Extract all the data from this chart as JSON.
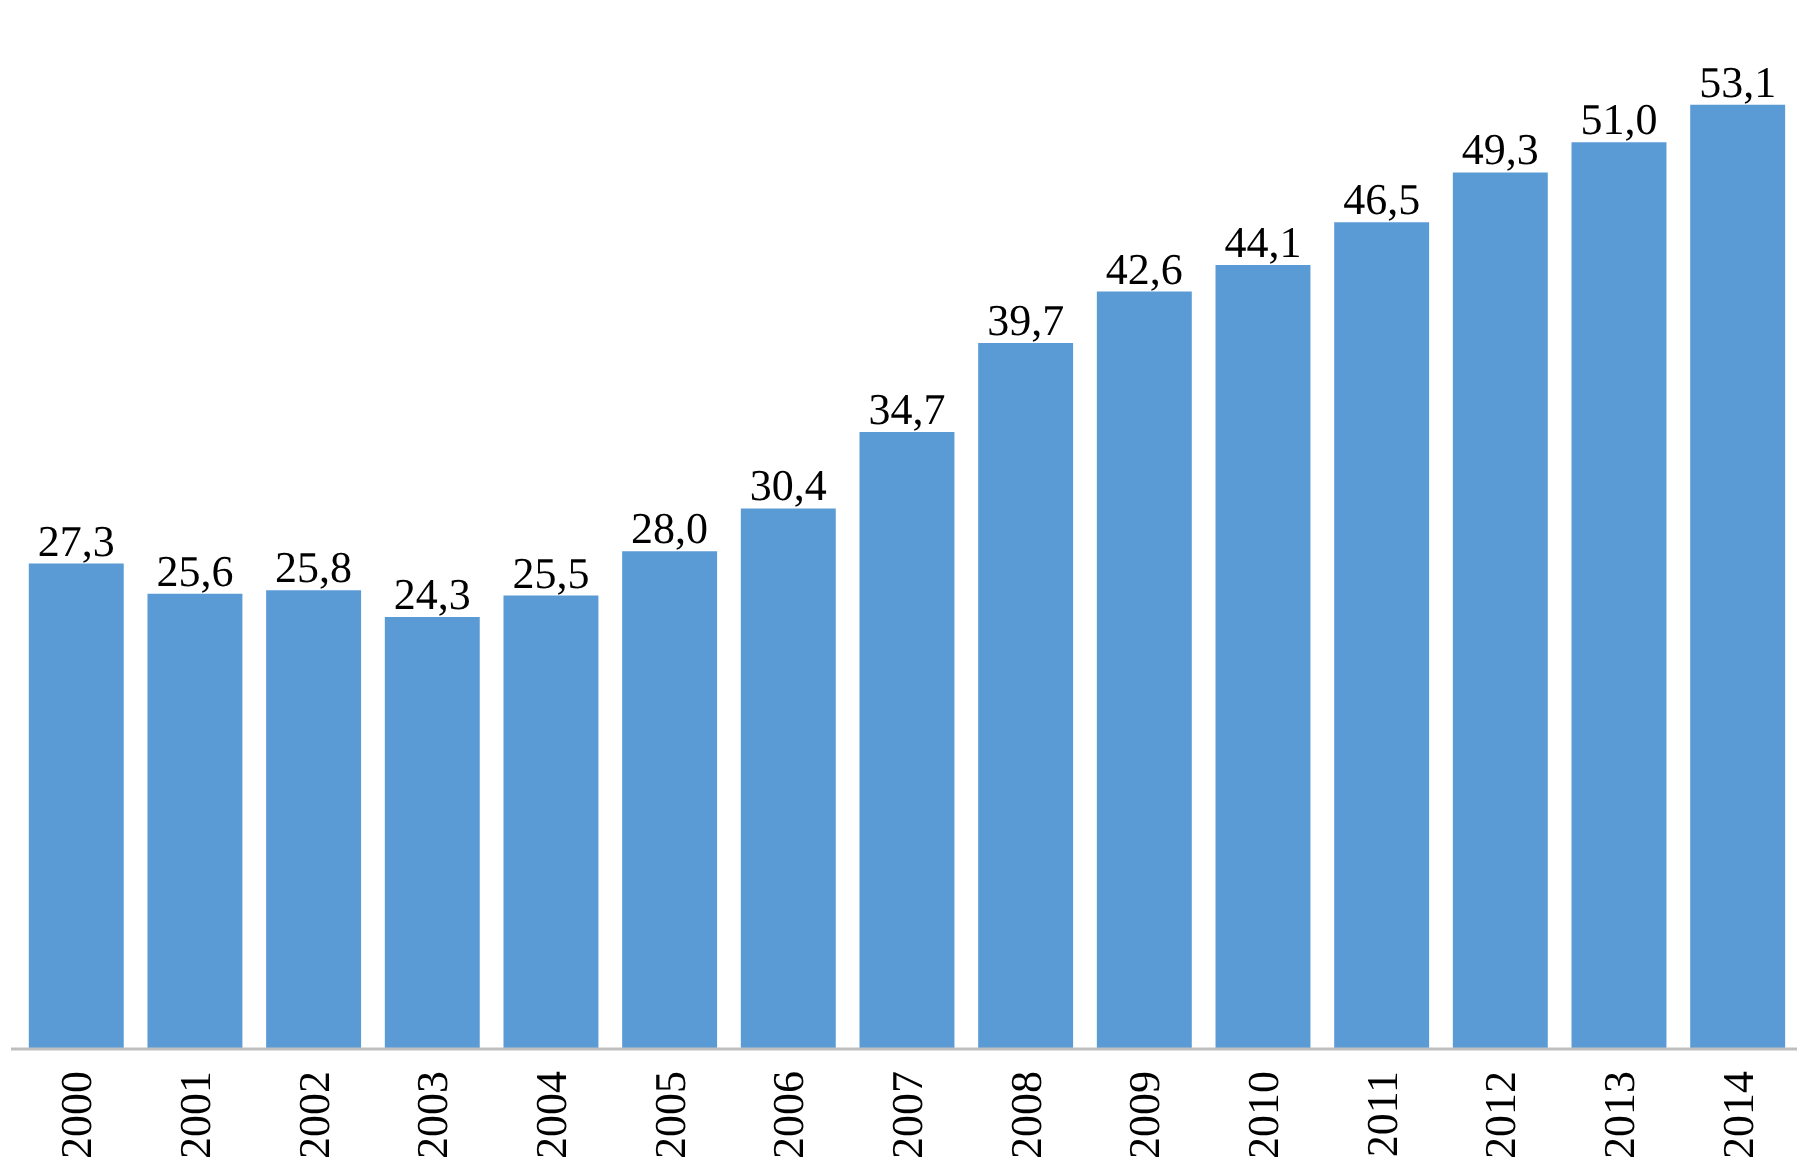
{
  "chart_data": {
    "type": "bar",
    "categories": [
      "2000",
      "2001",
      "2002",
      "2003",
      "2004",
      "2005",
      "2006",
      "2007",
      "2008",
      "2009",
      "2010",
      "2011",
      "2012",
      "2013",
      "2014"
    ],
    "values": [
      27.3,
      25.6,
      25.8,
      24.3,
      25.5,
      28.0,
      30.4,
      34.7,
      39.7,
      42.6,
      44.1,
      46.5,
      49.3,
      51.0,
      53.1
    ],
    "value_labels": [
      "27,3",
      "25,6",
      "25,8",
      "24,3",
      "25,5",
      "28,0",
      "30,4",
      "34,7",
      "39,7",
      "42,6",
      "44,1",
      "46,5",
      "49,3",
      "51,0",
      "53,1"
    ],
    "color": "#5b9bd5",
    "grid": false
  }
}
